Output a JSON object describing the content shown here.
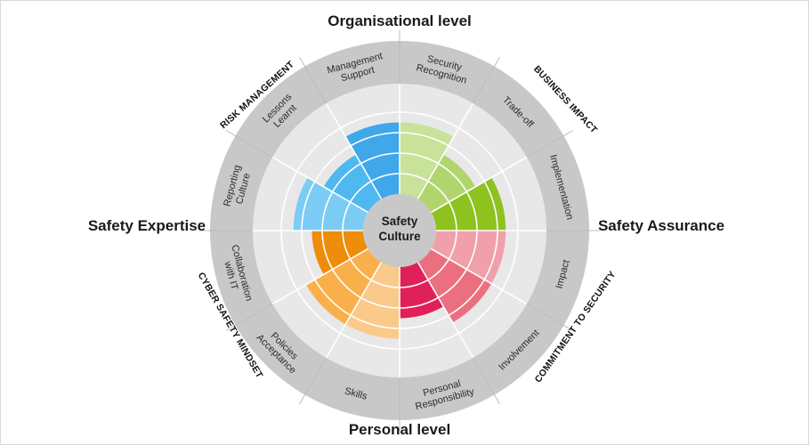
{
  "axes": {
    "top": "Organisational level",
    "bottom": "Personal level",
    "left": "Safety Expertise",
    "right": "Safety Assurance"
  },
  "center_label": [
    "Safety",
    "Culture"
  ],
  "dimensions": {
    "risk_management": "RISK MANAGEMENT",
    "business_impact": "BUSINESS IMPACT",
    "commitment_to_security": "COMMITMENT TO SECURITY",
    "cyber_safety_mindset": "CYBER SAFETY MINDSET"
  },
  "segments": [
    {
      "id": "security-recognition",
      "label": [
        "Security",
        "Recognition"
      ],
      "level": 3.5,
      "color": "#c8e29a"
    },
    {
      "id": "trade-off",
      "label": [
        "Trade-off"
      ],
      "level": 2.5,
      "color": "#b1d56d"
    },
    {
      "id": "implementation",
      "label": [
        "Implementation"
      ],
      "level": 3.4,
      "color": "#8dc21f"
    },
    {
      "id": "impact",
      "label": [
        "Impact"
      ],
      "level": 3.4,
      "color": "#f1a0ab"
    },
    {
      "id": "involvement",
      "label": [
        "Involvement"
      ],
      "level": 3.4,
      "color": "#ec6f80"
    },
    {
      "id": "personal-responsibility",
      "label": [
        "Personal",
        "Responsibility"
      ],
      "level": 2.5,
      "color": "#e02059"
    },
    {
      "id": "skills",
      "label": [
        "Skills"
      ],
      "level": 3.5,
      "color": "#fbc98a"
    },
    {
      "id": "policies-acceptance",
      "label": [
        "Policies",
        "Acceptance"
      ],
      "level": 3.5,
      "color": "#f9b04a"
    },
    {
      "id": "collaboration-with-it",
      "label": [
        "Collaboration",
        "with IT"
      ],
      "level": 2.5,
      "color": "#ef8c0a"
    },
    {
      "id": "reporting-culture",
      "label": [
        "Reporting",
        "Culture"
      ],
      "level": 3.4,
      "color": "#7ccbf5"
    },
    {
      "id": "lessons-learnt",
      "label": [
        "Lessons",
        "Learnt"
      ],
      "level": 2.5,
      "color": "#4fb8ef"
    },
    {
      "id": "management-support",
      "label": [
        "Management",
        "Support"
      ],
      "level": 3.5,
      "color": "#3fa7ea"
    }
  ],
  "colors": {
    "outer_ring": "#c8c8c8",
    "inner_background": "#e8e8e8",
    "grid_line": "#ffffff",
    "center_disc": "#c8c8c8"
  }
}
